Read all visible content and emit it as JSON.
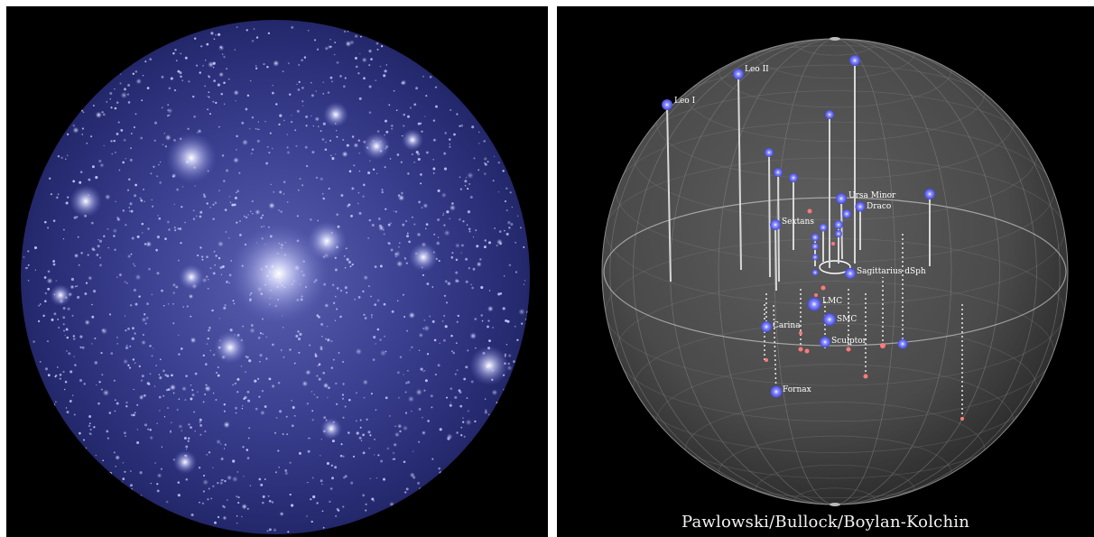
{
  "left_panel": {
    "subject": "simulated dark matter halo with subhalos"
  },
  "right_panel": {
    "subject": "Milky Way satellite galaxies in 3D sphere",
    "satellite_labels": [
      "Leo II",
      "Leo I",
      "Ursa Minor",
      "Draco",
      "Sextans",
      "Sagittarius dSph",
      "LMC",
      "SMC",
      "Carina",
      "Sculptor",
      "Fornax"
    ],
    "credit": "Pawlowski/Bullock/Boylan-Kolchin"
  },
  "colors": {
    "background": "#000000",
    "halo_blue": "#3a3f8f",
    "satellite_blue": "#6b70ff",
    "satellite_red": "#ff6b6b",
    "sphere_grid": "#8a8a8a"
  }
}
